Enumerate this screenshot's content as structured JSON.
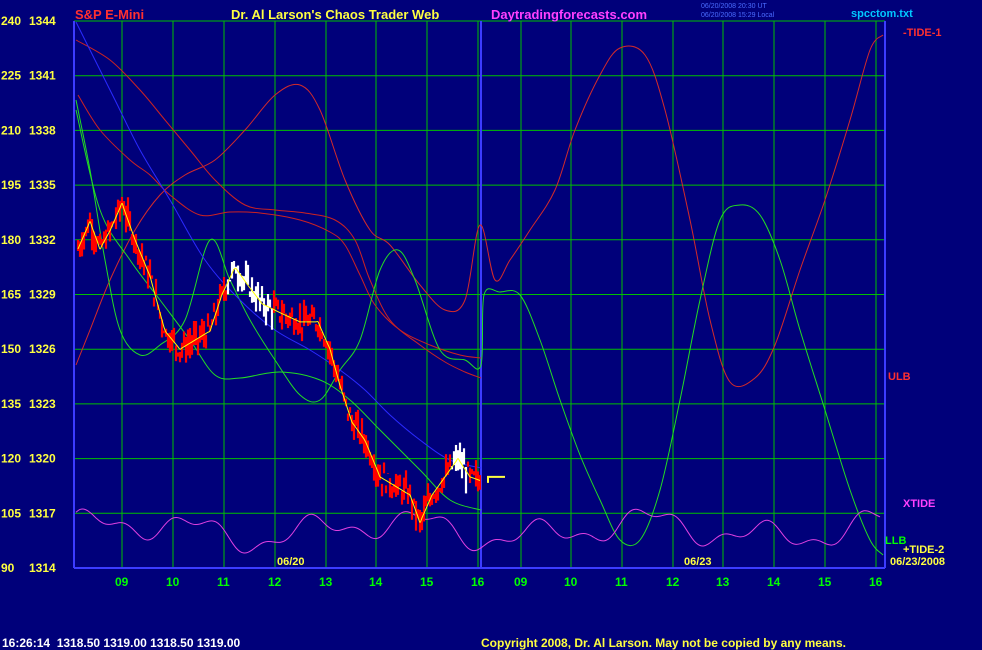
{
  "colors": {
    "background": "#00007a",
    "grid": "#00c000",
    "border": "#3c3cff",
    "price": "#ff0000",
    "price_recent": "#ffffff",
    "price_avg": "#ffff00",
    "tide1": "#d42a2a",
    "ulb": "#cc2222",
    "llb": "#22dd22",
    "xtide": "#e040e0",
    "blue_avg": "#2a2aff",
    "text_red": "#ff3030",
    "text_yellow": "#ffff40",
    "text_white": "#ffffff",
    "text_magenta": "#ff40ff",
    "text_green": "#00ff00",
    "text_cyan": "#00c8ff"
  },
  "header": {
    "symbol": "S&P E-Mini",
    "title": "Dr. Al Larson's Chaos Trader Web",
    "website": "Daytradingforecasts.com",
    "timestamp_1": "06/20/2008 20:30 UT",
    "timestamp_2": "06/20/2008 15:29 Local",
    "filename": "spcctom.txt"
  },
  "footer": {
    "quote": "16:26:14  1318.50 1319.00 1318.50 1319.00",
    "copyright": "Copyright 2008, Dr. Al Larson. May not be copied by any means."
  },
  "chart_data": {
    "type": "line",
    "y_axis_left_index": [
      240,
      225,
      210,
      195,
      180,
      165,
      150,
      135,
      120,
      105,
      90
    ],
    "y_axis_left_price": [
      1344,
      1341,
      1338,
      1335,
      1332,
      1329,
      1326,
      1323,
      1320,
      1317,
      1314
    ],
    "ylim_price": [
      1314,
      1344
    ],
    "x_ticks": [
      "09",
      "10",
      "11",
      "12",
      "13",
      "14",
      "15",
      "16",
      "09",
      "10",
      "11",
      "12",
      "13",
      "14",
      "15",
      "16"
    ],
    "dates": [
      "06/20",
      "06/23",
      "06/23/2008"
    ],
    "series_labels": [
      "-TIDE-1",
      "ULB",
      "XTIDE",
      "LLB",
      "+TIDE-2"
    ],
    "last_price": 1319.0,
    "grid": true
  }
}
